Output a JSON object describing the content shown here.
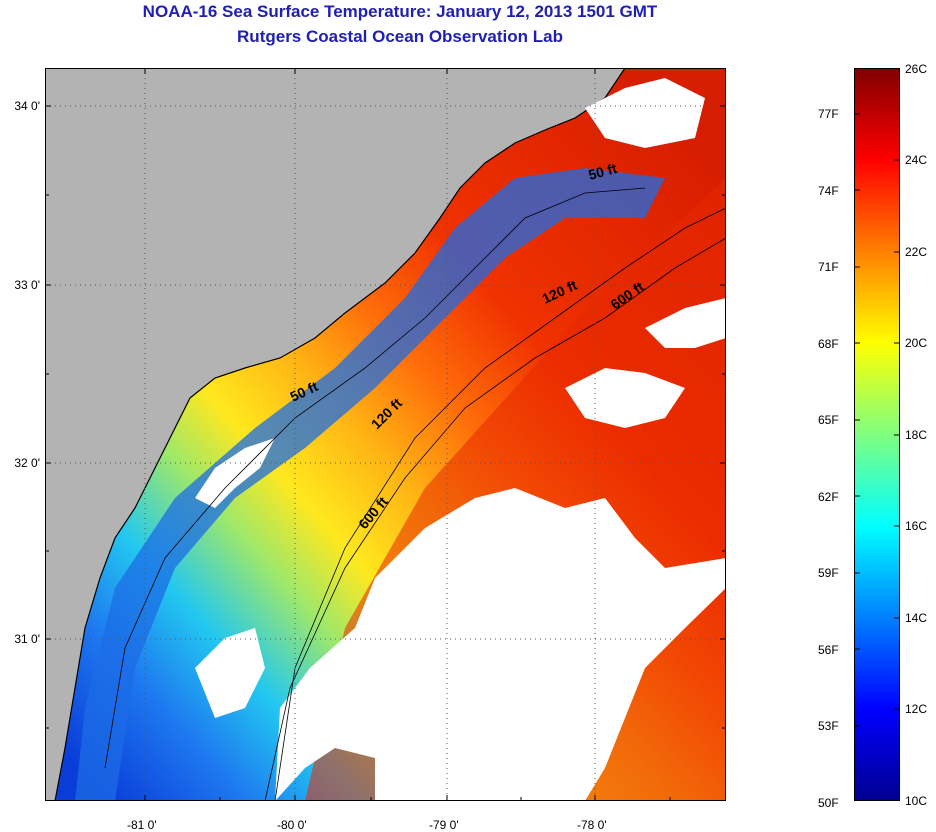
{
  "title": {
    "line1": "NOAA-16 Sea Surface Temperature:  January 12, 2013 1501 GMT",
    "line2": "Rutgers Coastal Ocean Observation Lab"
  },
  "map": {
    "lat_ticks": [
      "34 0'",
      "33 0'",
      "32 0'",
      "31 0'"
    ],
    "lon_ticks": [
      "-81 0'",
      "-80 0'",
      "-79 0'",
      "-78 0'"
    ],
    "depth_labels": [
      "50 ft",
      "50 ft",
      "120 ft",
      "120 ft",
      "600 ft",
      "600 ft"
    ],
    "colors": {
      "land": "#b3b3b3",
      "cloud": "#ffffff",
      "coastline": "#000000"
    }
  },
  "colorbar": {
    "celsius_labels": [
      "26C",
      "24C",
      "22C",
      "20C",
      "18C",
      "16C",
      "14C",
      "12C",
      "10C"
    ],
    "fahrenheit_labels": [
      "77F",
      "74F",
      "71F",
      "68F",
      "65F",
      "62F",
      "59F",
      "56F",
      "53F",
      "50F"
    ],
    "celsius_range": [
      10,
      26
    ],
    "colormap": "jet"
  }
}
